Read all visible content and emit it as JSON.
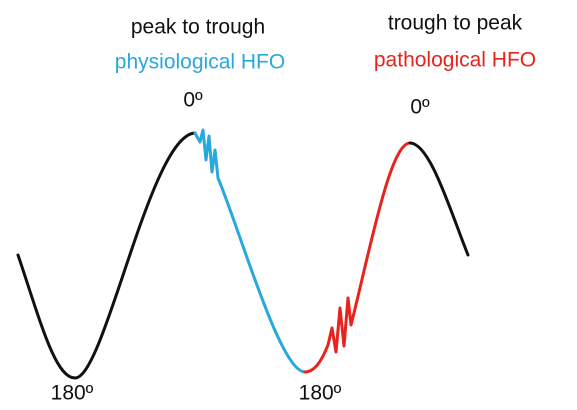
{
  "left_title": "peak to trough",
  "left_subtitle": "physiological HFO",
  "right_title": "trough to peak",
  "right_subtitle": "pathological HFO",
  "peak_label_left": "0º",
  "peak_label_right": "0º",
  "trough_label_left": "180º",
  "trough_label_right": "180º"
}
